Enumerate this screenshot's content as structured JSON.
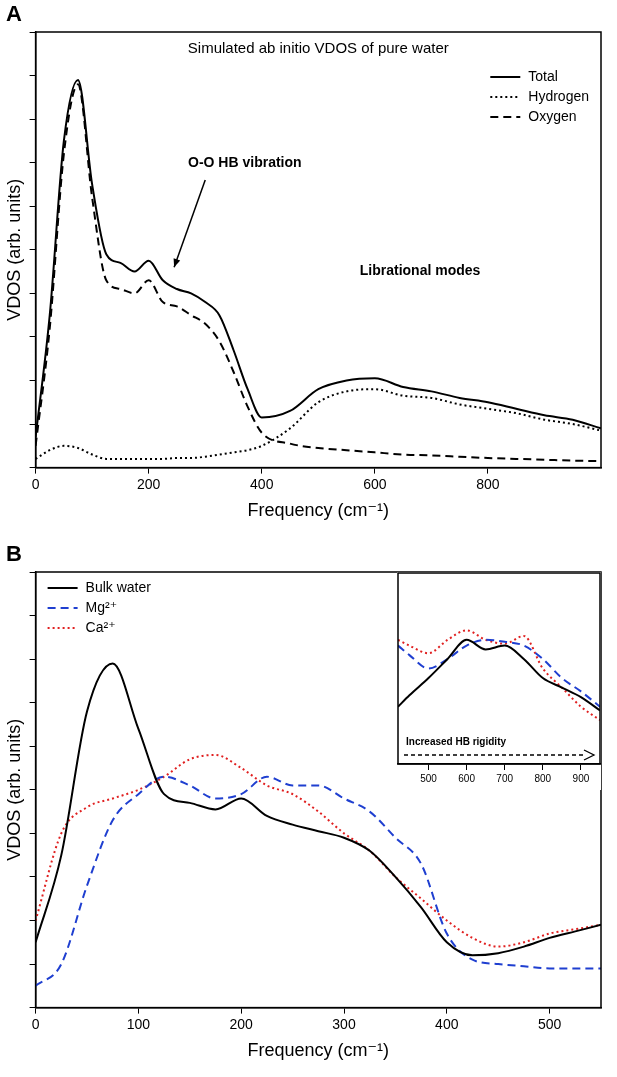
{
  "chart_data": [
    {
      "type": "line",
      "panel": "A",
      "title": "Simulated ab initio VDOS of pure water",
      "x_label": "Frequency (cm⁻¹)",
      "y_label": "VDOS (arb. units)",
      "x": [
        0,
        25,
        50,
        75,
        100,
        125,
        150,
        175,
        200,
        225,
        250,
        275,
        300,
        325,
        350,
        375,
        400,
        450,
        500,
        550,
        600,
        650,
        700,
        750,
        800,
        850,
        900,
        950,
        1000
      ],
      "series": [
        {
          "name": "Total",
          "color": "#000000",
          "line_style": "solid",
          "values": [
            0.7,
            3.5,
            7.5,
            8.9,
            6.5,
            4.9,
            4.7,
            4.5,
            4.75,
            4.3,
            4.1,
            4.0,
            3.8,
            3.5,
            2.7,
            1.8,
            1.15,
            1.3,
            1.8,
            2.0,
            2.05,
            1.85,
            1.75,
            1.6,
            1.5,
            1.35,
            1.2,
            1.1,
            0.9
          ]
        },
        {
          "name": "Hydrogen",
          "color": "#000000",
          "line_style": "dotted",
          "values": [
            0.2,
            0.4,
            0.5,
            0.45,
            0.3,
            0.2,
            0.2,
            0.2,
            0.2,
            0.2,
            0.22,
            0.22,
            0.25,
            0.3,
            0.35,
            0.4,
            0.5,
            0.9,
            1.5,
            1.75,
            1.8,
            1.65,
            1.6,
            1.45,
            1.35,
            1.25,
            1.1,
            1.0,
            0.85
          ]
        },
        {
          "name": "Oxygen",
          "color": "#000000",
          "line_style": "dashed",
          "values": [
            0.5,
            3.2,
            7.2,
            8.8,
            6.2,
            4.3,
            4.1,
            4.0,
            4.3,
            3.8,
            3.7,
            3.5,
            3.3,
            2.9,
            2.2,
            1.4,
            0.8,
            0.55,
            0.45,
            0.4,
            0.35,
            0.3,
            0.28,
            0.25,
            0.22,
            0.2,
            0.18,
            0.16,
            0.15
          ]
        }
      ],
      "annotations": [
        "O-O HB vibration",
        "Librational modes"
      ],
      "xlim": [
        0,
        1000
      ],
      "xticks": [
        0,
        200,
        400,
        600,
        800
      ],
      "ylim": [
        0,
        10
      ],
      "yticks": [
        0,
        1,
        2,
        3,
        4,
        5,
        6,
        7,
        8,
        9,
        10
      ],
      "grid": false,
      "legend": "upper right",
      "tick_labels": "x"
    },
    {
      "type": "line",
      "panel": "B",
      "x_label": "Frequency (cm⁻¹)",
      "y_label": "VDOS (arb. units)",
      "x": [
        0,
        25,
        50,
        75,
        100,
        125,
        150,
        175,
        200,
        225,
        250,
        275,
        300,
        325,
        350,
        375,
        400,
        425,
        450,
        475,
        500,
        525,
        550
      ],
      "series": [
        {
          "name": "Bulk water",
          "color": "#000000",
          "line_style": "solid",
          "values": [
            1.5,
            3.5,
            6.8,
            7.9,
            6.4,
            4.9,
            4.7,
            4.55,
            4.8,
            4.4,
            4.2,
            4.05,
            3.9,
            3.6,
            3.0,
            2.3,
            1.5,
            1.2,
            1.25,
            1.4,
            1.6,
            1.75,
            1.9
          ]
        },
        {
          "name": "Mg²⁺",
          "color": "#1f3fd0",
          "line_style": "dashed",
          "values": [
            0.5,
            1.0,
            2.8,
            4.3,
            4.9,
            5.3,
            5.1,
            4.8,
            4.9,
            5.3,
            5.1,
            5.1,
            4.8,
            4.5,
            3.9,
            3.3,
            1.7,
            1.1,
            1.0,
            0.95,
            0.9,
            0.9,
            0.9
          ]
        },
        {
          "name": "Ca²⁺",
          "color": "#e02020",
          "line_style": "dotted",
          "values": [
            2.0,
            4.0,
            4.6,
            4.8,
            5.0,
            5.3,
            5.7,
            5.8,
            5.5,
            5.1,
            4.9,
            4.5,
            4.0,
            3.6,
            3.0,
            2.5,
            2.0,
            1.6,
            1.4,
            1.5,
            1.7,
            1.8,
            1.9
          ]
        }
      ],
      "xlim": [
        0,
        550
      ],
      "xticks": [
        0,
        100,
        200,
        300,
        400,
        500
      ],
      "ylim": [
        0,
        10
      ],
      "yticks": [
        0,
        1,
        2,
        3,
        4,
        5,
        6,
        7,
        8,
        9,
        10
      ],
      "grid": false,
      "legend": "upper left",
      "tick_labels": "x"
    },
    {
      "type": "line",
      "x": [
        420,
        450,
        500,
        550,
        600,
        650,
        700,
        750,
        800,
        850,
        900,
        950
      ],
      "series": [
        {
          "color": "#000000",
          "line_style": "solid",
          "values": [
            3.0,
            3.6,
            4.5,
            5.5,
            6.5,
            6.0,
            6.2,
            5.5,
            4.5,
            4.0,
            3.5,
            2.8
          ]
        },
        {
          "color": "#1f3fd0",
          "line_style": "dashed",
          "values": [
            6.2,
            5.7,
            5.0,
            5.5,
            6.2,
            6.5,
            6.4,
            6.2,
            5.5,
            4.5,
            3.8,
            3.0
          ]
        },
        {
          "color": "#e02020",
          "line_style": "dotted",
          "values": [
            6.5,
            6.2,
            5.8,
            6.5,
            7.0,
            6.5,
            6.3,
            6.7,
            5.0,
            4.0,
            3.0,
            2.3
          ]
        }
      ],
      "annotations": [
        "Increased HB rigidity"
      ],
      "xlim": [
        420,
        950
      ],
      "xticks": [
        500,
        600,
        700,
        800,
        900
      ],
      "ylim": [
        0,
        10
      ],
      "grid": false,
      "tick_labels": "x"
    }
  ]
}
